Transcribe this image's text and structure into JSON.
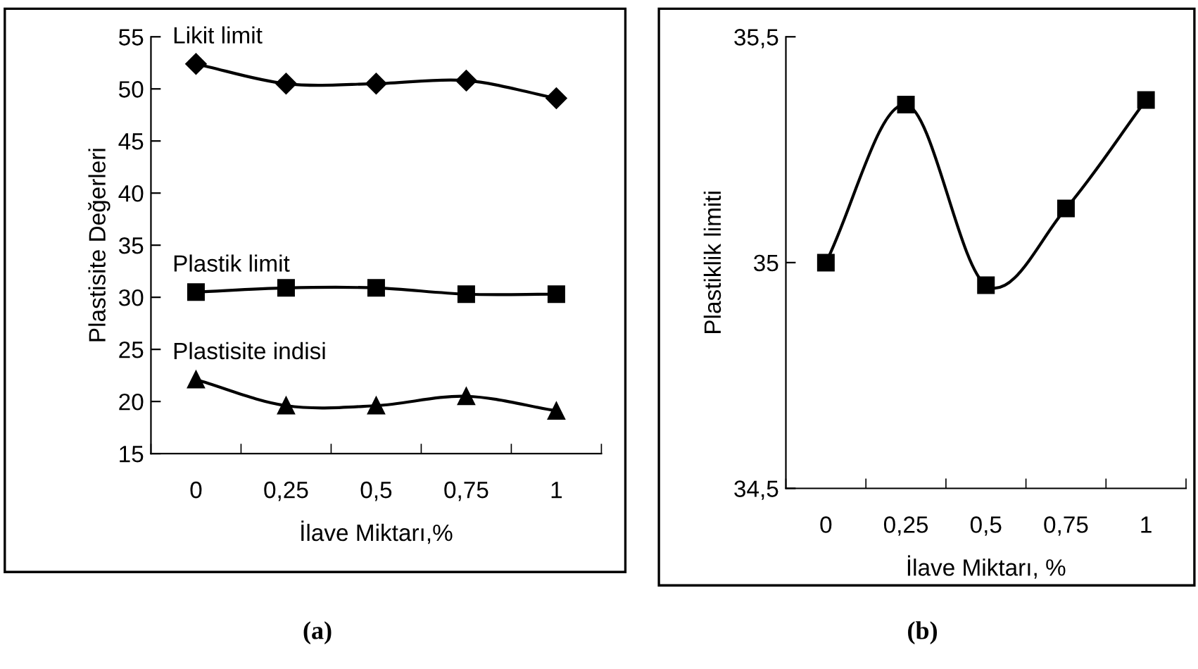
{
  "chart_data": [
    {
      "type": "line",
      "xlabel": "İlave Miktarı,%",
      "ylabel": "Plastisite Değerleri",
      "categories": [
        "0",
        "0,25",
        "0,5",
        "0,75",
        "1"
      ],
      "ylim": [
        15,
        55
      ],
      "yticks": [
        15,
        20,
        25,
        30,
        35,
        40,
        45,
        50,
        55
      ],
      "grid": false,
      "legend": false,
      "line_style": "solid",
      "annotations": [
        "(a)"
      ],
      "series": [
        {
          "name": "Likit limit",
          "color": "#000000",
          "marker": "diamond",
          "values": [
            52.4,
            50.5,
            50.5,
            50.8,
            49.1
          ]
        },
        {
          "name": "Plastik limit",
          "color": "#000000",
          "marker": "square",
          "values": [
            30.5,
            30.9,
            30.9,
            30.3,
            30.3
          ]
        },
        {
          "name": "Plastisite indisi",
          "color": "#000000",
          "marker": "triangle",
          "values": [
            22.1,
            19.6,
            19.6,
            20.5,
            19.1
          ]
        }
      ]
    },
    {
      "type": "line",
      "xlabel": "İlave Miktarı, %",
      "ylabel": "Plastiklik limiti",
      "categories": [
        "0",
        "0,25",
        "0,5",
        "0,75",
        "1"
      ],
      "ylim": [
        34.5,
        35.5
      ],
      "yticks": [
        {
          "value": 34.5,
          "label": "34,5"
        },
        35,
        {
          "value": 35.5,
          "label": "35,5"
        }
      ],
      "grid": false,
      "legend": false,
      "line_style": "solid",
      "marker": "square",
      "annotations": [
        "(b)"
      ],
      "series": [
        {
          "color": "#000000",
          "values": [
            35.0,
            35.35,
            34.95,
            35.12,
            35.36
          ]
        }
      ]
    }
  ]
}
